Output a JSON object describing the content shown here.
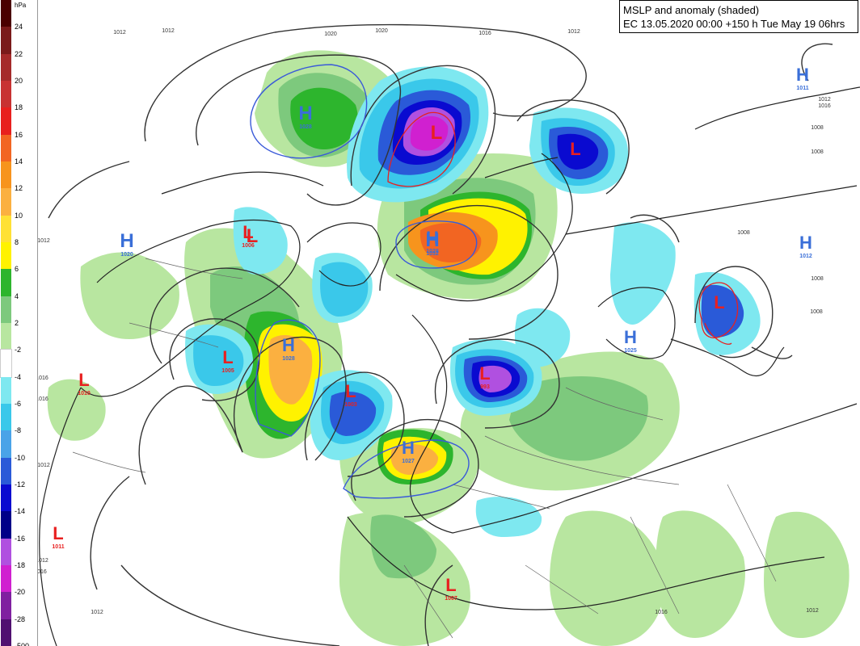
{
  "title": {
    "line1": "MSLP and anomaly (shaded)",
    "line2": "EC 13.05.2020 00:00 +150 h Tue May 19 06hrs"
  },
  "colorbar": {
    "unit": "hPa",
    "labels": [
      "24",
      "22",
      "20",
      "18",
      "16",
      "14",
      "12",
      "10",
      "8",
      "6",
      "4",
      "2",
      "-2",
      "-4",
      "-6",
      "-8",
      "-10",
      "-12",
      "-14",
      "-16",
      "-18",
      "-20",
      "-28",
      "-500"
    ],
    "colors": [
      "#4a0000",
      "#7a1a1a",
      "#a52a2a",
      "#c83232",
      "#e8201e",
      "#f26522",
      "#f7941d",
      "#fbb040",
      "#ffe135",
      "#fff200",
      "#2db52d",
      "#7dc97d",
      "#b8e6a0",
      "#ffffff",
      "#7ee8f0",
      "#3ac8ea",
      "#4aa3e8",
      "#2a5ad8",
      "#0a0ad0",
      "#000088",
      "#b050e0",
      "#d020d0",
      "#8020a0",
      "#501070"
    ]
  },
  "systems": [
    {
      "type": "H",
      "value": "1028",
      "color": "#3a6fd8",
      "size": 24
    },
    {
      "type": "L",
      "value": "",
      "color": "#e82020",
      "size": 24
    },
    {
      "type": "L",
      "value": "",
      "color": "#e82020",
      "size": 24
    },
    {
      "type": "H",
      "value": "1011",
      "color": "#3a6fd8",
      "size": 22
    },
    {
      "type": "H",
      "value": "1020",
      "color": "#3a6fd8",
      "size": 24
    },
    {
      "type": "L",
      "value": "1005",
      "color": "#e82020",
      "size": 22
    },
    {
      "type": "H",
      "value": "1032",
      "color": "#3a6fd8",
      "size": 24
    },
    {
      "type": "H",
      "value": "1012",
      "color": "#3a6fd8",
      "size": 22
    },
    {
      "type": "L",
      "value": "",
      "color": "#e82020",
      "size": 22
    },
    {
      "type": "L",
      "value": "",
      "color": "#e82020",
      "size": 22
    },
    {
      "type": "H",
      "value": "1025",
      "color": "#3a6fd8",
      "size": 22
    },
    {
      "type": "L",
      "value": "1006",
      "color": "#e82020",
      "size": 22
    },
    {
      "type": "H",
      "value": "1028",
      "color": "#3a6fd8",
      "size": 22
    },
    {
      "type": "L",
      "value": "993",
      "color": "#e82020",
      "size": 22
    },
    {
      "type": "L",
      "value": "1010",
      "color": "#e82020",
      "size": 22
    },
    {
      "type": "L",
      "value": "1003",
      "color": "#e82020",
      "size": 22
    },
    {
      "type": "H",
      "value": "1028",
      "color": "#3a6fd8",
      "size": 22
    },
    {
      "type": "H",
      "value": "1027",
      "color": "#3a6fd8",
      "size": 22
    },
    {
      "type": "L",
      "value": "1011",
      "color": "#e82020",
      "size": 22
    },
    {
      "type": "L",
      "value": "1007",
      "color": "#e82020",
      "size": 22
    }
  ],
  "isobar_labels": [
    "1012",
    "1012",
    "1020",
    "1020",
    "1016",
    "1012",
    "1012",
    "1016",
    "1008",
    "1008",
    "1008",
    "1008",
    "1012",
    "1008",
    "1016",
    "1016",
    "1012",
    "1012",
    "1016",
    "1012",
    "1016",
    "1012"
  ]
}
